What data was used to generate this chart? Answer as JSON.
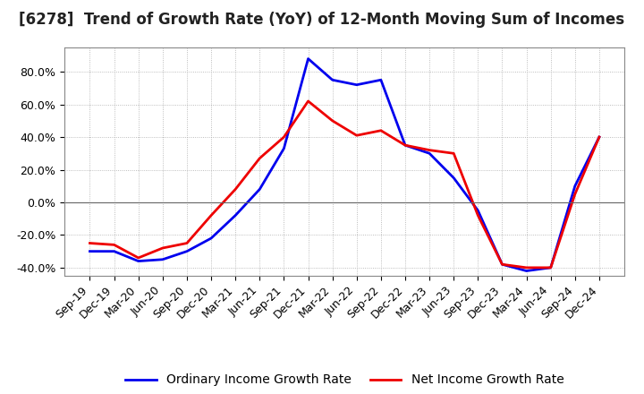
{
  "title": "[6278]  Trend of Growth Rate (YoY) of 12-Month Moving Sum of Incomes",
  "ordinary_income": {
    "label": "Ordinary Income Growth Rate",
    "color": "#0000EE",
    "x": [
      "Sep-19",
      "Dec-19",
      "Mar-20",
      "Jun-20",
      "Sep-20",
      "Dec-20",
      "Mar-21",
      "Jun-21",
      "Sep-21",
      "Dec-21",
      "Mar-22",
      "Jun-22",
      "Sep-22",
      "Dec-22",
      "Mar-23",
      "Jun-23",
      "Sep-23",
      "Dec-23",
      "Mar-24",
      "Jun-24",
      "Sep-24",
      "Dec-24"
    ],
    "y": [
      -30,
      -30,
      -36,
      -35,
      -30,
      -22,
      -8,
      8,
      33,
      88,
      75,
      72,
      75,
      35,
      30,
      15,
      -5,
      -38,
      -42,
      -40,
      10,
      40
    ]
  },
  "net_income": {
    "label": "Net Income Growth Rate",
    "color": "#EE0000",
    "x": [
      "Sep-19",
      "Dec-19",
      "Mar-20",
      "Jun-20",
      "Sep-20",
      "Dec-20",
      "Mar-21",
      "Jun-21",
      "Sep-21",
      "Dec-21",
      "Mar-22",
      "Jun-22",
      "Sep-22",
      "Dec-22",
      "Mar-23",
      "Jun-23",
      "Sep-23",
      "Dec-23",
      "Mar-24",
      "Jun-24",
      "Sep-24",
      "Dec-24"
    ],
    "y": [
      -25,
      -26,
      -34,
      -28,
      -25,
      -8,
      8,
      27,
      40,
      62,
      50,
      41,
      44,
      35,
      32,
      30,
      -8,
      -38,
      -40,
      -40,
      5,
      40
    ]
  },
  "ylim": [
    -45,
    95
  ],
  "yticks": [
    -40,
    -20,
    0,
    20,
    40,
    60,
    80
  ],
  "background_color": "#FFFFFF",
  "grid_color": "#AAAAAA",
  "title_fontsize": 12,
  "legend_fontsize": 10,
  "tick_fontsize": 9,
  "linewidth": 2.0
}
